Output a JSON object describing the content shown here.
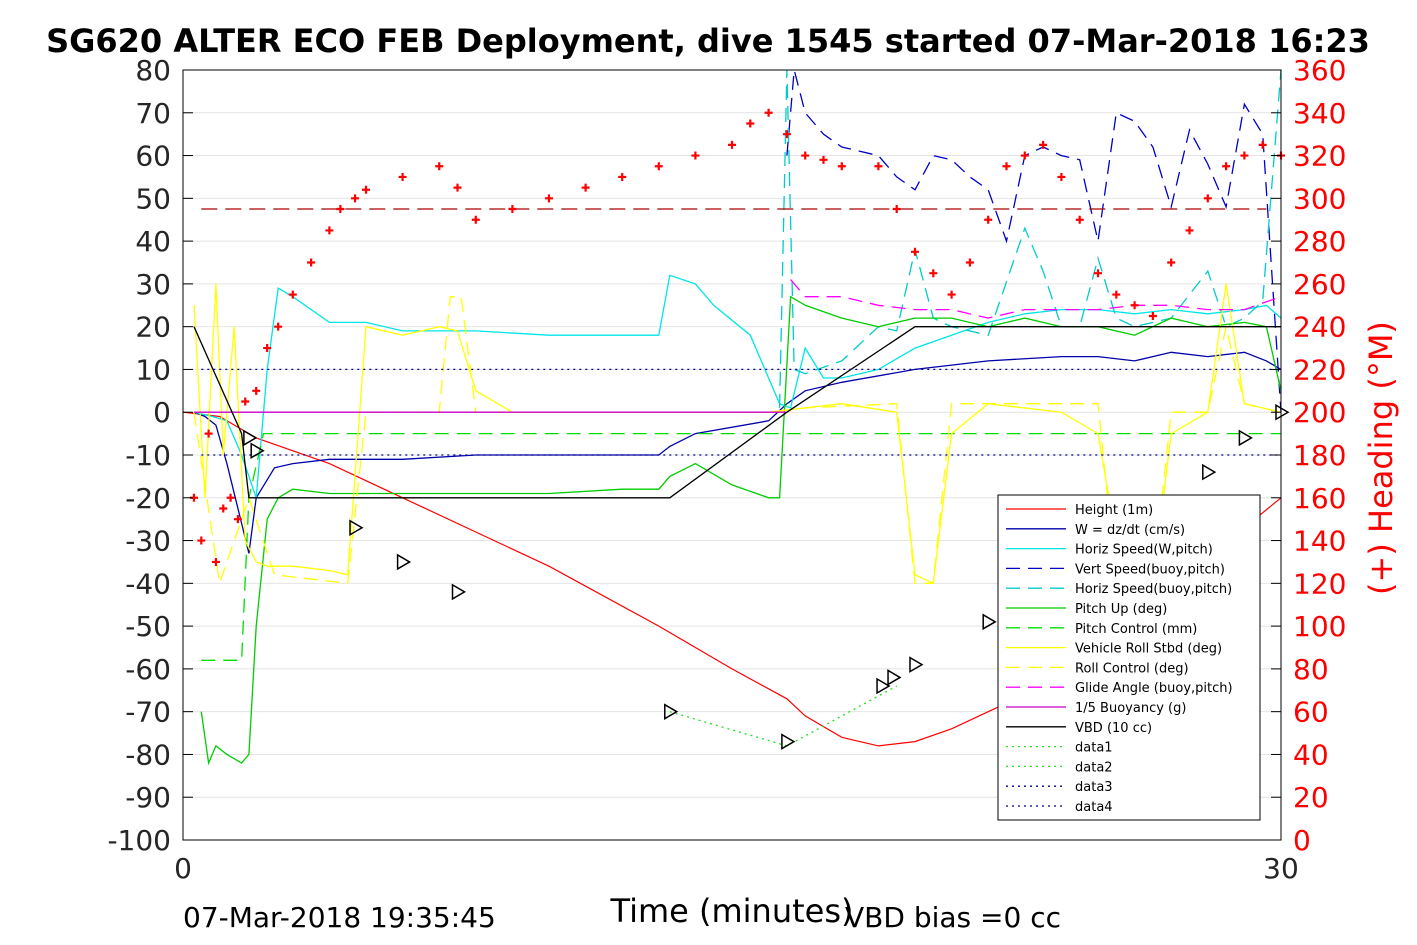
{
  "chart_data": {
    "type": "line",
    "title": "SG620 ALTER ECO FEB Deployment, dive 1545 started 07-Mar-2018 16:23",
    "xlabel": "Time (minutes)",
    "ylabel_right": "(+) Heading (°M)",
    "xlim": [
      0,
      30
    ],
    "ylim_left": [
      -100,
      80
    ],
    "ylim_right": [
      0,
      360
    ],
    "x_ticks": [
      "0",
      "30"
    ],
    "y_ticks_left": [
      "80",
      "70",
      "60",
      "50",
      "40",
      "30",
      "20",
      "10",
      "0",
      "-10",
      "-20",
      "-30",
      "-40",
      "-50",
      "-60",
      "-70",
      "-80",
      "-90",
      "-100"
    ],
    "y_ticks_right": [
      "360",
      "340",
      "320",
      "300",
      "280",
      "260",
      "240",
      "220",
      "200",
      "180",
      "160",
      "140",
      "120",
      "100",
      "80",
      "60",
      "40",
      "20",
      "0"
    ],
    "grid": "horizontal",
    "legend_position": "bottom-right",
    "footer_left": "07-Mar-2018 19:35:45",
    "footer_right": "VBD bias =0 cc",
    "colors": {
      "height": "#ff0000",
      "w": "#0000aa",
      "horiz_w": "#00e5e5",
      "vert_buoy": "#0000cc",
      "horiz_buoy": "#00cccc",
      "pitch": "#00cc00",
      "pitch_ctl": "#00dd00",
      "roll": "#ffff00",
      "roll_ctl": "#ffff00",
      "glide": "#ff00ff",
      "buoy": "#cc00cc",
      "vbd": "#000000",
      "data1": "#22dd22",
      "data2": "#22dd22",
      "data3": "#000088",
      "data4": "#000088",
      "heading": "#ff0000",
      "heading_mean": "#aa0000"
    },
    "series": [
      {
        "name": "Height (1m)",
        "key": "height",
        "style": "solid",
        "x": [
          0,
          1,
          2,
          4,
          6,
          8,
          10,
          13,
          15,
          16.5,
          17,
          18,
          19,
          20,
          21,
          22,
          23,
          24,
          25,
          26,
          27,
          28,
          29,
          30
        ],
        "y": [
          0,
          -1,
          -6,
          -12,
          -20,
          -28,
          -36,
          -50,
          -60,
          -67,
          -71,
          -76,
          -78,
          -77,
          -74,
          -70,
          -66,
          -61,
          -55,
          -49,
          -42,
          -35,
          -27,
          -20
        ]
      },
      {
        "name": "W = dz/dt (cm/s)",
        "key": "w",
        "style": "solid",
        "x": [
          0.3,
          0.6,
          0.9,
          1.2,
          1.6,
          1.8,
          2,
          2.5,
          3,
          4,
          5,
          6,
          8,
          10,
          12,
          13,
          13.3,
          14,
          16,
          16.5,
          17,
          18,
          20,
          22,
          24,
          25,
          26,
          27,
          28,
          29,
          29.6,
          30
        ],
        "y": [
          0,
          -1,
          -3,
          -12,
          -26,
          -33,
          -20,
          -13,
          -12,
          -11,
          -11,
          -11,
          -10,
          -10,
          -10,
          -10,
          -8,
          -5,
          -2,
          2,
          5,
          7,
          10,
          12,
          13,
          13,
          12,
          14,
          13,
          14,
          12,
          10
        ]
      },
      {
        "name": "Horiz Speed(W,pitch)",
        "key": "horiz_w",
        "style": "solid",
        "x": [
          0.3,
          0.8,
          1.2,
          1.6,
          2,
          2.3,
          2.6,
          3,
          4,
          5,
          6,
          8,
          10,
          12,
          13,
          13.3,
          14,
          14.5,
          15.5,
          16.3,
          16.6,
          17,
          17.5,
          18,
          19,
          20,
          21,
          22,
          23,
          24,
          25,
          26,
          27,
          28,
          29,
          29.6,
          30
        ],
        "y": [
          0,
          -1,
          -2,
          -10,
          -20,
          10,
          29,
          27,
          21,
          21,
          19,
          19,
          18,
          18,
          18,
          32,
          30,
          25,
          18,
          2,
          1,
          15,
          8,
          8,
          10,
          15,
          18,
          21,
          23,
          24,
          24,
          23,
          24,
          23,
          24,
          25,
          22
        ]
      },
      {
        "name": "Vert Speed(buoy,pitch)",
        "key": "vert_buoy",
        "style": "dash",
        "x": [
          16.5,
          16.7,
          17,
          17.5,
          18,
          19,
          19.5,
          20,
          20.5,
          21,
          21.5,
          22,
          22.5,
          23,
          23.5,
          24,
          24.5,
          25,
          25.5,
          26,
          26.5,
          27,
          27.5,
          28,
          28.5,
          29,
          29.5,
          30
        ],
        "y": [
          60,
          80,
          70,
          65,
          62,
          60,
          55,
          52,
          60,
          59,
          55,
          52,
          40,
          60,
          62,
          60,
          59,
          40,
          70,
          68,
          62,
          48,
          66,
          58,
          48,
          72,
          65,
          0
        ]
      },
      {
        "name": "Horiz Speed(buoy,pitch)",
        "key": "horiz_buoy",
        "style": "dash",
        "x": [
          16.3,
          16.5,
          16.7,
          17,
          18,
          19,
          19.5,
          20,
          20.5,
          21,
          22,
          23,
          23.5,
          24,
          24.5,
          25,
          25.5,
          26,
          27,
          28,
          28.5,
          29,
          29.5,
          30
        ],
        "y": [
          1,
          80,
          10,
          9,
          12,
          20,
          19,
          38,
          22,
          20,
          18,
          43,
          33,
          20,
          20,
          36,
          22,
          20,
          22,
          33,
          20,
          22,
          26,
          80
        ]
      },
      {
        "name": "Pitch Up (deg)",
        "key": "pitch",
        "style": "solid",
        "x": [
          0.5,
          0.7,
          0.9,
          1.2,
          1.6,
          1.8,
          2,
          2.3,
          2.6,
          3,
          4,
          5,
          6,
          8,
          10,
          12,
          13,
          13.3,
          14,
          15,
          16,
          16.3,
          16.6,
          17,
          18,
          19,
          20,
          21,
          22,
          23,
          24,
          25,
          26,
          27,
          28,
          29,
          29.6,
          30
        ],
        "y": [
          -70,
          -82,
          -78,
          -80,
          -82,
          -80,
          -50,
          -25,
          -20,
          -18,
          -19,
          -19,
          -19,
          -19,
          -19,
          -18,
          -18,
          -15,
          -12,
          -17,
          -20,
          -20,
          27,
          25,
          22,
          20,
          22,
          22,
          20,
          22,
          20,
          20,
          18,
          22,
          20,
          21,
          20,
          5
        ]
      },
      {
        "name": "Pitch Control (mm)",
        "key": "pitch_ctl",
        "style": "dash",
        "x": [
          0.5,
          1.6,
          1.8,
          2.2,
          30
        ],
        "y": [
          -58,
          -58,
          -20,
          -5,
          -5
        ]
      },
      {
        "name": "Vehicle Roll Stbd (deg)",
        "key": "roll",
        "style": "solid",
        "x": [
          0.3,
          0.6,
          0.9,
          1.1,
          1.4,
          1.7,
          2,
          2.3,
          3,
          4,
          4.5,
          5,
          6,
          7,
          7.5,
          8,
          9,
          12,
          16,
          17,
          18,
          19.5,
          20,
          20.5,
          21,
          22,
          24,
          25,
          25.5,
          26,
          26.5,
          27,
          28,
          28.5,
          29,
          30
        ],
        "y": [
          25,
          -20,
          30,
          -10,
          20,
          -30,
          -35,
          -36,
          -36,
          -37,
          -38,
          20,
          18,
          20,
          19,
          5,
          0,
          0,
          0,
          1,
          2,
          0,
          -38,
          -40,
          -5,
          2,
          0,
          -5,
          -30,
          -38,
          -40,
          -5,
          0,
          30,
          2,
          0
        ]
      },
      {
        "name": "Roll Control (deg)",
        "key": "roll_ctl",
        "style": "dash",
        "x": [
          0.3,
          1,
          1.8,
          2.5,
          4.5,
          5,
          5.5,
          6,
          7,
          7.3,
          7.6,
          8,
          12,
          16,
          17,
          19.5,
          20,
          20.5,
          21,
          25,
          25.5,
          26,
          26.5,
          27,
          28,
          28.5,
          29,
          30
        ],
        "y": [
          0,
          -40,
          -20,
          -38,
          -40,
          0,
          0,
          0,
          0,
          27,
          27,
          0,
          0,
          0,
          1,
          2,
          -40,
          -40,
          2,
          2,
          -40,
          -40,
          -40,
          0,
          0,
          20,
          2,
          0
        ]
      },
      {
        "name": "Glide Angle (buoy,pitch)",
        "key": "glide",
        "style": "dash",
        "x": [
          16.6,
          17,
          18,
          19,
          20,
          21,
          22,
          23,
          24,
          25,
          26,
          27,
          28,
          29,
          30
        ],
        "y": [
          31,
          27,
          27,
          25,
          24,
          24,
          22,
          24,
          24,
          24,
          25,
          25,
          24,
          24,
          27
        ]
      },
      {
        "name": "1/5 Buoyancy (g)",
        "key": "buoy",
        "style": "solid",
        "x": [
          0.3,
          16.5
        ],
        "y": [
          0,
          0
        ]
      },
      {
        "name": "VBD (10 cc)",
        "key": "vbd",
        "style": "solid",
        "x": [
          0.3,
          1.6,
          1.8,
          13.3,
          16.5,
          20,
          30
        ],
        "y": [
          20,
          -5,
          -20,
          -20,
          0,
          20,
          20
        ]
      },
      {
        "name": "data1",
        "key": "data1",
        "style": "dot",
        "x": [
          13.3,
          16.5,
          19.5
        ],
        "y": [
          -70,
          -78,
          -64
        ]
      },
      {
        "name": "data2",
        "key": "data2",
        "style": "dot",
        "x": [],
        "y": []
      },
      {
        "name": "data3",
        "key": "data3",
        "style": "dot",
        "x": [
          0.5,
          30
        ],
        "y": [
          10,
          10
        ]
      },
      {
        "name": "data4",
        "key": "data4",
        "style": "dot",
        "x": [
          0.5,
          30
        ],
        "y": [
          -10,
          -10
        ]
      }
    ],
    "markers": {
      "description": "open triangles on Height",
      "x": [
        1.8,
        2,
        4.7,
        6,
        7.5,
        13.3,
        16.5,
        19.1,
        19.4,
        20,
        22,
        23,
        25,
        26,
        28,
        29,
        30
      ],
      "y": [
        -6,
        -9,
        -27,
        -35,
        -42,
        -70,
        -77,
        -64,
        -62,
        -59,
        -49,
        -42,
        -32,
        -26,
        -14,
        -6,
        0
      ]
    },
    "heading": {
      "name": "Heading",
      "axis": "right",
      "mean": 295,
      "x": [
        0.3,
        0.5,
        0.7,
        0.9,
        1.1,
        1.3,
        1.5,
        1.7,
        2,
        2.3,
        2.6,
        3,
        3.5,
        4,
        4.3,
        4.7,
        5,
        6,
        7,
        7.5,
        8,
        9,
        10,
        11,
        12,
        13,
        14,
        15,
        15.5,
        16,
        16.5,
        17,
        17.5,
        18,
        19,
        19.5,
        20,
        20.5,
        21,
        21.5,
        22,
        22.5,
        23,
        23.5,
        24,
        24.5,
        25,
        25.5,
        26,
        26.5,
        27,
        27.5,
        28,
        28.5,
        29,
        29.5,
        30
      ],
      "y": [
        160,
        140,
        190,
        130,
        155,
        160,
        150,
        205,
        210,
        230,
        240,
        255,
        270,
        285,
        295,
        300,
        304,
        310,
        315,
        305,
        290,
        295,
        300,
        305,
        310,
        315,
        320,
        325,
        335,
        340,
        330,
        320,
        318,
        315,
        315,
        295,
        275,
        265,
        255,
        270,
        290,
        315,
        320,
        325,
        310,
        290,
        265,
        255,
        250,
        245,
        270,
        285,
        300,
        315,
        320,
        325,
        320
      ]
    }
  }
}
